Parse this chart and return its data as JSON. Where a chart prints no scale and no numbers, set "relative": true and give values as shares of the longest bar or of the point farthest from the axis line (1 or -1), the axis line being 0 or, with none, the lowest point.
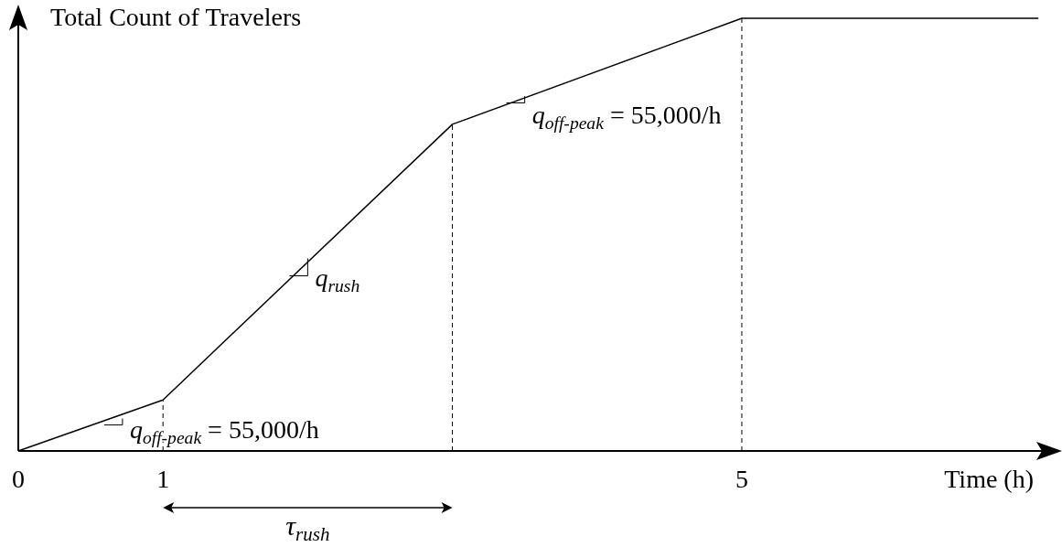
{
  "chart_data": {
    "type": "line",
    "relative": true,
    "xlabel": "Time (h)",
    "ylabel": "Total Count of Travelers",
    "tick_labels": "x",
    "xlim": [
      0,
      7.08
    ],
    "xticks": [
      0,
      1,
      5
    ],
    "series": [
      {
        "color": "#000000",
        "x": [
          0,
          1,
          3,
          5,
          7.05
        ],
        "values": [
          0,
          0.118,
          0.755,
          1,
          1
        ]
      }
    ],
    "ref_lines": [
      {
        "axis": "x",
        "value": 1,
        "line_style": "dashed"
      },
      {
        "axis": "x",
        "value": 3,
        "line_style": "dashed"
      },
      {
        "axis": "x",
        "value": 5,
        "line_style": "dashed"
      }
    ],
    "annotations": [
      {
        "text": "q$_{off-peak}$ = 55,000/h",
        "x": 0.72,
        "y": 0.075
      },
      {
        "text": "q$_{rush}$",
        "x": 2.0,
        "y": 0.445
      },
      {
        "text": "q$_{off-peak}$ = 55,000/h",
        "x": 3.5,
        "y": 0.82
      },
      "τ$_{rush}$"
    ]
  }
}
